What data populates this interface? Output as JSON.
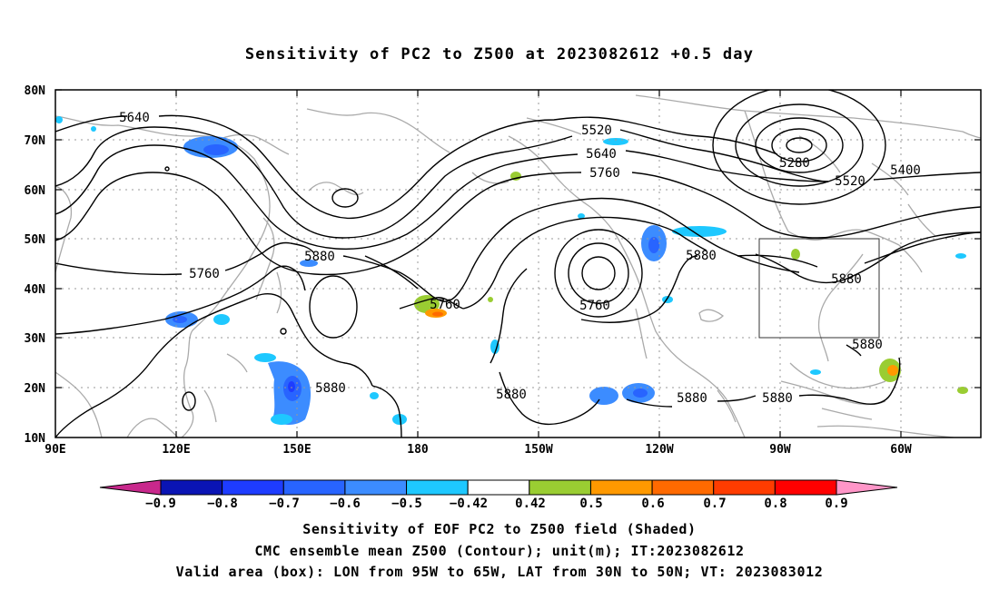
{
  "title": "Sensitivity of PC2 to Z500 at 2023082612 +0.5 day",
  "lat_ticks": [
    "80N",
    "70N",
    "60N",
    "50N",
    "40N",
    "30N",
    "20N",
    "10N"
  ],
  "lon_ticks": [
    "90E",
    "120E",
    "150E",
    "180",
    "150W",
    "120W",
    "90W",
    "60W"
  ],
  "contour_labels": [
    "5640",
    "5520",
    "5640",
    "5760",
    "5280",
    "5400",
    "5520",
    "5880",
    "5760",
    "5880",
    "5760",
    "5880",
    "5760",
    "5880",
    "5880",
    "5880",
    "5880",
    "5880"
  ],
  "colorbar": {
    "labels": [
      "−0.9",
      "−0.8",
      "−0.7",
      "−0.6",
      "−0.5",
      "−0.42",
      "0.42",
      "0.5",
      "0.6",
      "0.7",
      "0.8",
      "0.9"
    ],
    "colors": [
      "#0a14b4",
      "#1e3cff",
      "#2864ff",
      "#3c8cff",
      "#1ec8ff",
      "#ffffff",
      "#9acd32",
      "#ff9900",
      "#ff6a00",
      "#ff3c00",
      "#ff0000"
    ],
    "low_end_color": "#c8288c",
    "high_end_color": "#ff96c8"
  },
  "captions": [
    "Sensitivity of EOF PC2 to Z500 field (Shaded)",
    "CMC ensemble mean Z500 (Contour); unit(m); IT:2023082612",
    "Valid area (box): LON from 95W to 65W, LAT from 30N to 50N; VT: 2023083012"
  ]
}
